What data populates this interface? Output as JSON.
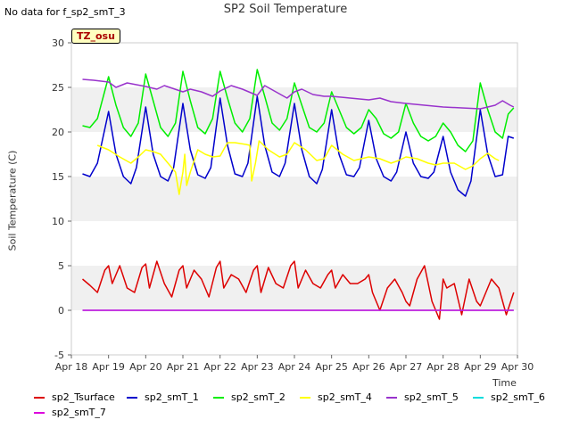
{
  "header": {
    "no_data": "No data for f_sp2_smT_3",
    "title": "SP2 Soil Temperature",
    "tz": "TZ_osu"
  },
  "chart_data": {
    "type": "line",
    "title": "SP2 Soil Temperature",
    "ylabel": "Soil Temperature (C)",
    "xlabel": "Time",
    "ylim": [
      -5,
      30
    ],
    "yticks": [
      -5,
      0,
      5,
      10,
      15,
      20,
      25,
      30
    ],
    "xlim": [
      "Apr 18",
      "Apr 30"
    ],
    "xticks": [
      "Apr 18",
      "Apr 19",
      "Apr 20",
      "Apr 21",
      "Apr 22",
      "Apr 23",
      "Apr 24",
      "Apr 25",
      "Apr 26",
      "Apr 27",
      "Apr 28",
      "Apr 29",
      "Apr 30"
    ],
    "grid_bands": true,
    "legend_position": "bottom",
    "series": [
      {
        "name": "sp2_Tsurface",
        "color": "#dd0000",
        "x": [
          0.3,
          0.5,
          0.7,
          0.9,
          1.0,
          1.1,
          1.3,
          1.5,
          1.7,
          1.9,
          2.0,
          2.1,
          2.3,
          2.5,
          2.7,
          2.9,
          3.0,
          3.1,
          3.3,
          3.5,
          3.7,
          3.9,
          4.0,
          4.1,
          4.3,
          4.5,
          4.7,
          4.9,
          5.0,
          5.1,
          5.3,
          5.5,
          5.7,
          5.9,
          6.0,
          6.1,
          6.3,
          6.5,
          6.7,
          6.9,
          7.0,
          7.1,
          7.3,
          7.5,
          7.7,
          7.9,
          8.0,
          8.1,
          8.3,
          8.5,
          8.7,
          8.9,
          9.0,
          9.1,
          9.3,
          9.5,
          9.7,
          9.9,
          10.0,
          10.1,
          10.3,
          10.5,
          10.7,
          10.9,
          11.0,
          11.1,
          11.3,
          11.5,
          11.7,
          11.9
        ],
        "values": [
          3.5,
          2.8,
          2.0,
          4.5,
          5.0,
          3.0,
          5.0,
          2.5,
          2.0,
          4.8,
          5.2,
          2.5,
          5.5,
          3.0,
          1.5,
          4.5,
          5.0,
          2.5,
          4.5,
          3.5,
          1.5,
          4.8,
          5.5,
          2.5,
          4.0,
          3.5,
          2.0,
          4.5,
          5.0,
          2.0,
          4.8,
          3.0,
          2.5,
          5.0,
          5.5,
          2.5,
          4.5,
          3.0,
          2.5,
          4.0,
          4.5,
          2.5,
          4.0,
          3.0,
          3.0,
          3.5,
          4.0,
          2.0,
          0.0,
          2.5,
          3.5,
          2.0,
          1.0,
          0.5,
          3.5,
          5.0,
          1.0,
          -1.0,
          3.5,
          2.5,
          3.0,
          -0.5,
          3.5,
          1.0,
          0.5,
          1.5,
          3.5,
          2.5,
          -0.5,
          2.0
        ]
      },
      {
        "name": "sp2_smT_1",
        "color": "#0000cc",
        "x": [
          0.3,
          0.5,
          0.7,
          1.0,
          1.2,
          1.4,
          1.6,
          1.75,
          2.0,
          2.2,
          2.4,
          2.6,
          2.75,
          3.0,
          3.2,
          3.4,
          3.6,
          3.75,
          4.0,
          4.2,
          4.4,
          4.6,
          4.75,
          5.0,
          5.2,
          5.4,
          5.6,
          5.75,
          6.0,
          6.2,
          6.4,
          6.6,
          6.75,
          7.0,
          7.2,
          7.4,
          7.6,
          7.75,
          8.0,
          8.2,
          8.4,
          8.6,
          8.75,
          9.0,
          9.2,
          9.4,
          9.6,
          9.75,
          10.0,
          10.2,
          10.4,
          10.6,
          10.75,
          11.0,
          11.2,
          11.4,
          11.6,
          11.75,
          11.9
        ],
        "values": [
          15.3,
          15.0,
          16.5,
          22.3,
          17.5,
          15.0,
          14.2,
          16.0,
          22.8,
          17.5,
          15.0,
          14.5,
          16.0,
          23.2,
          18.0,
          15.2,
          14.8,
          16.0,
          23.8,
          18.5,
          15.3,
          15.0,
          16.5,
          24.0,
          18.5,
          15.5,
          15.0,
          16.5,
          23.2,
          18.0,
          15.0,
          14.2,
          15.8,
          22.5,
          17.5,
          15.2,
          15.0,
          16.0,
          21.3,
          17.0,
          15.0,
          14.5,
          15.5,
          20.0,
          16.5,
          15.0,
          14.8,
          15.5,
          19.5,
          15.5,
          13.5,
          12.8,
          14.5,
          22.5,
          17.5,
          15.0,
          15.2,
          19.5,
          19.3
        ]
      },
      {
        "name": "sp2_smT_2",
        "color": "#00ee00",
        "x": [
          0.3,
          0.5,
          0.7,
          1.0,
          1.2,
          1.4,
          1.6,
          1.8,
          2.0,
          2.2,
          2.4,
          2.6,
          2.8,
          3.0,
          3.2,
          3.4,
          3.6,
          3.8,
          4.0,
          4.2,
          4.4,
          4.6,
          4.8,
          5.0,
          5.2,
          5.4,
          5.6,
          5.8,
          6.0,
          6.2,
          6.4,
          6.6,
          6.8,
          7.0,
          7.2,
          7.4,
          7.6,
          7.8,
          8.0,
          8.2,
          8.4,
          8.6,
          8.8,
          9.0,
          9.2,
          9.4,
          9.6,
          9.8,
          10.0,
          10.2,
          10.4,
          10.6,
          10.8,
          11.0,
          11.2,
          11.4,
          11.6,
          11.75,
          11.9
        ],
        "values": [
          20.7,
          20.5,
          21.5,
          26.2,
          23.0,
          20.5,
          19.5,
          21.0,
          26.5,
          23.5,
          20.5,
          19.5,
          21.0,
          26.8,
          23.5,
          20.5,
          19.8,
          21.5,
          26.8,
          23.8,
          21.0,
          20.0,
          21.5,
          27.0,
          24.0,
          21.0,
          20.2,
          21.5,
          25.5,
          23.0,
          20.5,
          20.0,
          21.0,
          24.5,
          22.5,
          20.5,
          19.8,
          20.5,
          22.5,
          21.5,
          19.8,
          19.3,
          20.0,
          23.2,
          21.0,
          19.5,
          19.0,
          19.5,
          21.0,
          20.0,
          18.5,
          17.8,
          19.0,
          25.5,
          22.5,
          20.0,
          19.3,
          22.0,
          22.7
        ]
      },
      {
        "name": "sp2_smT_4",
        "color": "#ffff00",
        "x": [
          0.7,
          1.0,
          1.3,
          1.6,
          1.8,
          2.0,
          2.2,
          2.4,
          2.6,
          2.8,
          2.9,
          3.0,
          3.05,
          3.1,
          3.2,
          3.4,
          3.6,
          3.8,
          4.0,
          4.2,
          4.4,
          4.7,
          4.8,
          4.85,
          4.95,
          5.05,
          5.3,
          5.6,
          5.8,
          6.0,
          6.3,
          6.6,
          6.8,
          7.0,
          7.3,
          7.6,
          7.8,
          8.0,
          8.3,
          8.6,
          8.8,
          9.0,
          9.3,
          9.6,
          9.8,
          10.0,
          10.3,
          10.6,
          10.8,
          11.0,
          11.2,
          11.4,
          11.5
        ],
        "values": [
          18.5,
          18.0,
          17.2,
          16.5,
          17.2,
          18.0,
          17.8,
          17.5,
          16.5,
          15.5,
          13.0,
          15.5,
          17.5,
          14.0,
          15.5,
          18.0,
          17.5,
          17.2,
          17.3,
          18.8,
          18.8,
          18.6,
          18.5,
          14.5,
          16.5,
          19.0,
          18.0,
          17.2,
          17.5,
          18.8,
          18.0,
          16.8,
          17.0,
          18.5,
          17.5,
          16.8,
          17.0,
          17.2,
          17.0,
          16.5,
          16.8,
          17.2,
          17.0,
          16.5,
          16.3,
          16.5,
          16.5,
          15.8,
          16.2,
          17.0,
          17.6,
          17.0,
          16.8
        ]
      },
      {
        "name": "sp2_smT_5",
        "color": "#9933cc",
        "x": [
          0.3,
          0.6,
          1.0,
          1.2,
          1.5,
          2.0,
          2.3,
          2.5,
          3.0,
          3.2,
          3.5,
          3.8,
          4.0,
          4.3,
          4.6,
          5.0,
          5.2,
          5.5,
          5.8,
          6.0,
          6.2,
          6.5,
          6.8,
          7.0,
          7.5,
          8.0,
          8.3,
          8.6,
          9.0,
          9.5,
          10.0,
          10.5,
          11.0,
          11.2,
          11.4,
          11.6,
          11.8,
          11.9
        ],
        "values": [
          25.9,
          25.8,
          25.6,
          25.0,
          25.5,
          25.1,
          24.8,
          25.2,
          24.5,
          24.8,
          24.5,
          24.0,
          24.6,
          25.2,
          24.8,
          24.1,
          25.2,
          24.5,
          23.8,
          24.5,
          24.8,
          24.2,
          24.0,
          24.0,
          23.8,
          23.6,
          23.8,
          23.4,
          23.2,
          23.0,
          22.8,
          22.7,
          22.6,
          22.8,
          23.0,
          23.5,
          23.0,
          22.8
        ]
      },
      {
        "name": "sp2_smT_6",
        "color": "#00dddd",
        "x": [
          0.3,
          11.9
        ],
        "values": [
          0.0,
          0.0
        ]
      },
      {
        "name": "sp2_smT_7",
        "color": "#dd00dd",
        "x": [
          0.3,
          11.9
        ],
        "values": [
          0.0,
          0.0
        ]
      }
    ]
  }
}
